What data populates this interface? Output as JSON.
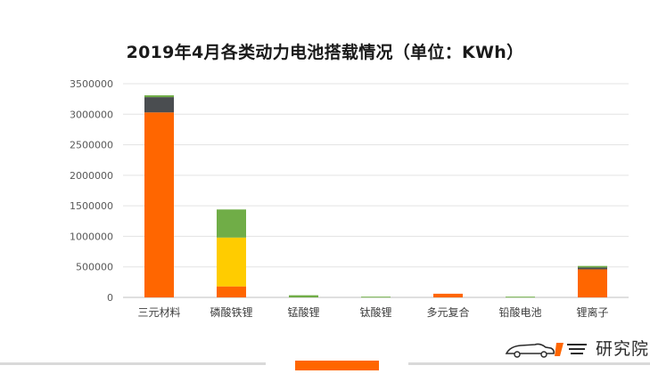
{
  "chart_data": {
    "type": "stacked-bar",
    "title": "2019年4月各类动力电池搭载情况（单位：KWh）",
    "categories": [
      "三元材料",
      "磷酸铁锂",
      "锰酸锂",
      "钛酸锂",
      "多元复合",
      "铅酸电池",
      "锂离子"
    ],
    "ylim": [
      0,
      3500000
    ],
    "yticks": [
      0,
      500000,
      1000000,
      1500000,
      2000000,
      2500000,
      3000000,
      3500000
    ],
    "grid": true,
    "legend": "none",
    "series": [
      {
        "color": "#ff6600",
        "values": [
          3030000,
          180000,
          0,
          0,
          60000,
          0,
          460000
        ]
      },
      {
        "color": "#ffcc00",
        "values": [
          0,
          800000,
          0,
          0,
          0,
          0,
          0
        ]
      },
      {
        "color": "#4a4d50",
        "values": [
          250000,
          0,
          0,
          0,
          0,
          0,
          30000
        ]
      },
      {
        "color": "#70ad47",
        "values": [
          30000,
          460000,
          35000,
          12000,
          0,
          12000,
          25000
        ]
      }
    ]
  },
  "watermark": {
    "text": "研究院",
    "logo_icon": "car-logo-icon"
  }
}
